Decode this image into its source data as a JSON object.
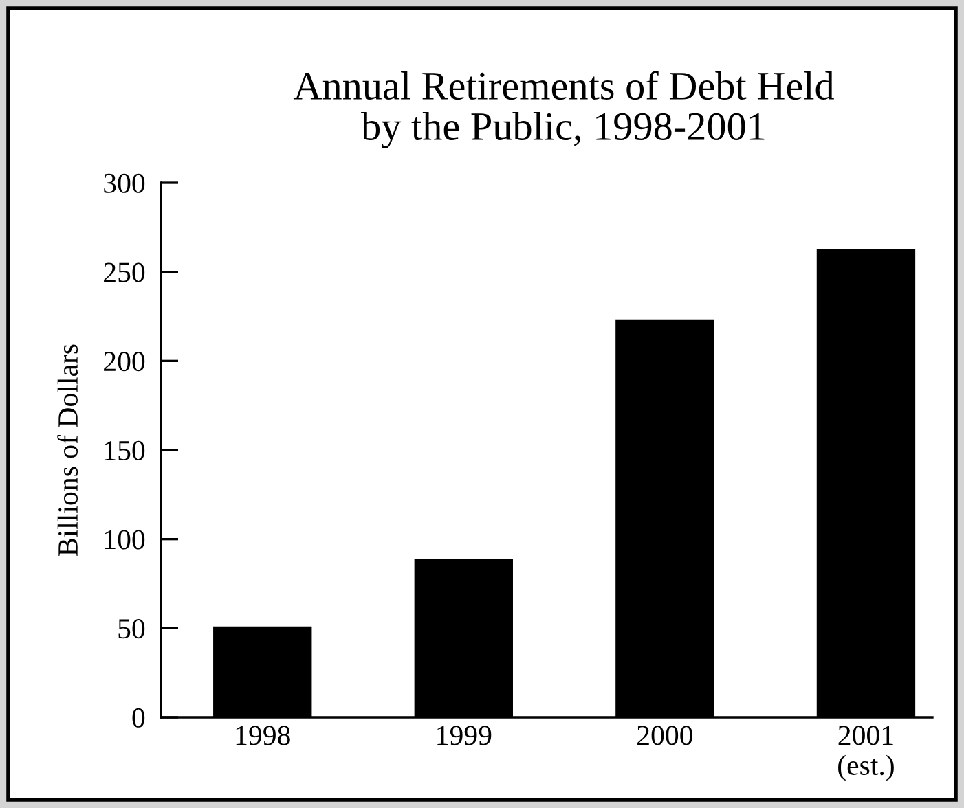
{
  "chart_data": {
    "type": "bar",
    "title": "Annual Retirements of Debt Held\nby the Public, 1998-2001",
    "ylabel": "Billions of Dollars",
    "categories": [
      "1998",
      "1999",
      "2000",
      "2001\n(est.)"
    ],
    "values": [
      51,
      89,
      223,
      263
    ],
    "color": "#000000",
    "ylim": [
      0,
      300
    ],
    "yticks": [
      0,
      50,
      100,
      150,
      200,
      250,
      300
    ],
    "grid": false,
    "legend": false
  }
}
